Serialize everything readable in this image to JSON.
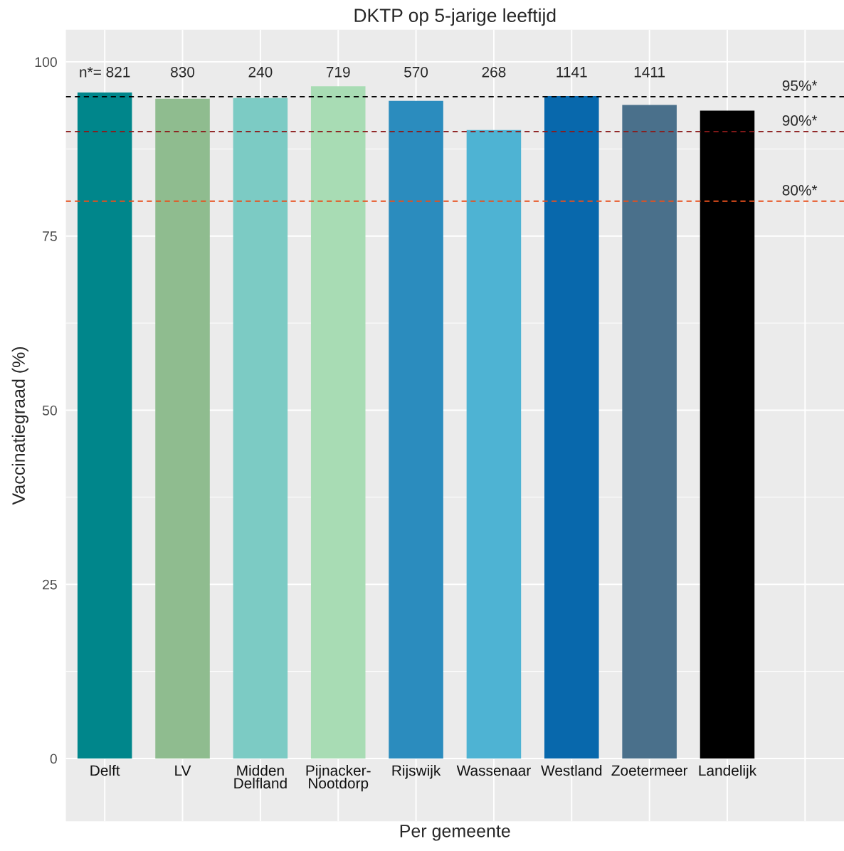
{
  "chart_data": {
    "type": "bar",
    "title": "DKTP op 5-jarige leeftijd",
    "xlabel": "Per gemeente",
    "ylabel": "Vaccinatiegraad (%)",
    "categories": [
      "Delft",
      "LV",
      "Midden\nDelfland",
      "Pijnacker-\nNootdorp",
      "Rijswijk",
      "Wassenaar",
      "Westland",
      "Zoetermeer",
      "Landelijk",
      null
    ],
    "values": [
      95.6,
      94.7,
      94.8,
      96.5,
      94.4,
      90.2,
      95.1,
      93.8,
      93.0,
      null
    ],
    "colors": [
      "#00868b",
      "#8fbc8f",
      "#7ccbc4",
      "#a8dcb4",
      "#2b8cbe",
      "#4eb3d3",
      "#0868ac",
      "#4a708b",
      "#000000",
      "#000000"
    ],
    "ylim": [
      -9,
      104.6
    ],
    "yticks": [
      0,
      25,
      50,
      75,
      100
    ],
    "grid": true,
    "legend": false,
    "ref_lines": [
      {
        "axis": "y",
        "value": 95,
        "label": "95%*",
        "color": "#000000",
        "line_style": "dashed"
      },
      {
        "axis": "y",
        "value": 90,
        "label": "90%*",
        "color": "#8b1a1a",
        "line_style": "dashed"
      },
      {
        "axis": "y",
        "value": 80,
        "label": "80%*",
        "color": "#e8501e",
        "line_style": "dashed"
      }
    ],
    "annotations": [
      "n*= 821",
      "830",
      "240",
      "719",
      "570",
      "268",
      "1141",
      "1411"
    ]
  }
}
